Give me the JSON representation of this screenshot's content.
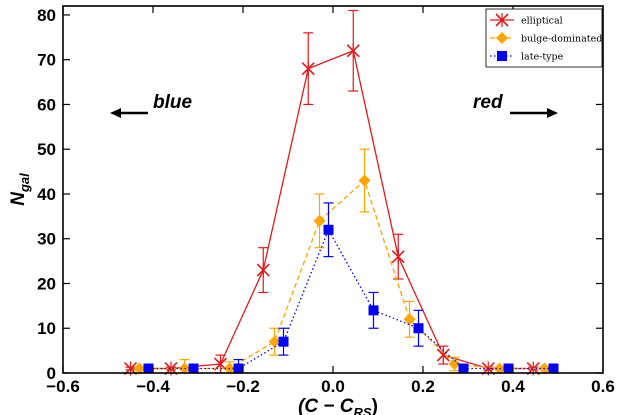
{
  "chart_data": {
    "type": "line",
    "xlabel": "(C − C",
    "xlabel_sub": "RS",
    "xlabel_close": ")",
    "ylabel": "N",
    "ylabel_sub": "gal",
    "xlim": [
      -0.6,
      0.6
    ],
    "ylim": [
      0,
      82
    ],
    "xticks": [
      -0.6,
      -0.4,
      -0.2,
      0.0,
      0.2,
      0.4,
      0.6
    ],
    "xtick_labels": [
      "−0.6",
      "−0.4",
      "−0.2",
      "0.0",
      "0.2",
      "0.4",
      "0.6"
    ],
    "yticks": [
      0,
      10,
      20,
      30,
      40,
      50,
      60,
      70,
      80
    ],
    "ytick_labels": [
      "0",
      "10",
      "20",
      "30",
      "40",
      "50",
      "60",
      "70",
      "80"
    ],
    "grid": false,
    "legend_position": "top-right",
    "annotations": [
      {
        "text": "blue",
        "arrow": "left"
      },
      {
        "text": "red",
        "arrow": "right"
      }
    ],
    "series": [
      {
        "name": "elliptical",
        "color": "#e41a1c",
        "marker": "x",
        "linestyle": "solid",
        "x": [
          -0.45,
          -0.36,
          -0.25,
          -0.155,
          -0.055,
          0.045,
          0.145,
          0.245,
          0.345,
          0.445
        ],
        "y": [
          1,
          1,
          2,
          23,
          68,
          72,
          26,
          4,
          1,
          1
        ],
        "err": [
          0.3,
          0.3,
          2,
          5,
          8,
          9,
          5,
          2,
          0.3,
          0.3
        ]
      },
      {
        "name": "bulge-dominated",
        "color": "#ffa500",
        "marker": "diamond",
        "linestyle": "dashed",
        "x": [
          -0.43,
          -0.33,
          -0.23,
          -0.13,
          -0.03,
          0.07,
          0.17,
          0.27,
          0.37,
          0.47
        ],
        "y": [
          1,
          1,
          1,
          7,
          34,
          43,
          12,
          2,
          1,
          1
        ],
        "err": [
          0.3,
          2,
          1.5,
          3,
          6,
          7,
          4,
          1.5,
          0.3,
          0.3
        ]
      },
      {
        "name": "late-type",
        "color": "#0000ff",
        "marker": "square",
        "linestyle": "dotted",
        "x": [
          -0.41,
          -0.31,
          -0.21,
          -0.11,
          -0.01,
          0.09,
          0.19,
          0.29,
          0.39,
          0.49
        ],
        "y": [
          1,
          1,
          1,
          7,
          32,
          14,
          10,
          1,
          1,
          1
        ],
        "err": [
          0.3,
          0.3,
          2,
          3,
          6,
          4,
          4,
          0.3,
          0.3,
          0.3
        ]
      }
    ]
  }
}
